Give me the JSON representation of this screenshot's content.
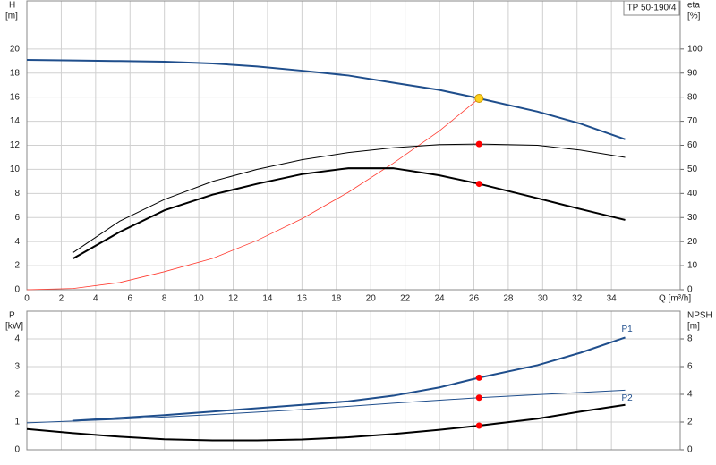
{
  "chart_data": [
    {
      "type": "line",
      "title": "TP 50-190/4",
      "ylabel": "H",
      "yunit": "[m]",
      "y2label": "eta",
      "y2unit": "[%]",
      "xlabel": "Q [m³/h]",
      "xlim": [
        0,
        38
      ],
      "xticks": [
        0,
        2,
        4,
        6,
        8,
        10,
        12,
        14,
        16,
        18,
        20,
        22,
        24,
        26,
        28,
        30,
        32,
        34
      ],
      "show_xtick_labels": true,
      "ylim": [
        0,
        24
      ],
      "yticks": [
        0,
        2,
        4,
        6,
        8,
        10,
        12,
        14,
        16,
        18,
        20
      ],
      "y2lim": [
        0,
        120
      ],
      "y2ticks": [
        0,
        10,
        20,
        30,
        40,
        50,
        60,
        70,
        80,
        90,
        100
      ],
      "grid": true,
      "series": [
        {
          "color": "#1f4e8c",
          "width": 2,
          "axis": "y",
          "x": [
            0,
            2.7,
            5.4,
            8,
            10.8,
            13.4,
            16,
            18.7,
            21.3,
            24,
            26.3,
            29.7,
            32.2,
            34.8
          ],
          "values": [
            19.1,
            19.05,
            19,
            18.95,
            18.8,
            18.55,
            18.2,
            17.8,
            17.2,
            16.6,
            15.9,
            14.8,
            13.8,
            12.5
          ]
        },
        {
          "color": "#ff3b30",
          "width": 0.8,
          "axis": "y",
          "x": [
            0,
            2.7,
            5.4,
            8,
            10.8,
            13.4,
            16,
            18.7,
            21.3,
            24,
            26.3
          ],
          "values": [
            0,
            0.1,
            0.6,
            1.5,
            2.6,
            4.1,
            5.9,
            8.1,
            10.5,
            13.2,
            15.9
          ]
        },
        {
          "color": "#000000",
          "width": 1,
          "axis": "y2",
          "x": [
            2.7,
            5.4,
            8,
            10.8,
            13.4,
            16,
            18.7,
            21.3,
            24,
            26.3,
            29.7,
            32.2,
            34.8
          ],
          "values": [
            15.5,
            28.5,
            37.5,
            45,
            50,
            54,
            57,
            59,
            60.3,
            60.5,
            60,
            58,
            55
          ]
        },
        {
          "color": "#000000",
          "width": 2,
          "axis": "y2",
          "x": [
            2.7,
            5.4,
            8,
            10.8,
            13.4,
            16,
            18.7,
            21.3,
            24,
            26.3,
            29.7,
            32.2,
            34.8
          ],
          "values": [
            13,
            24,
            33,
            39.5,
            44,
            48,
            50.5,
            50.5,
            47.5,
            44,
            38,
            33.5,
            29
          ]
        }
      ],
      "markers": [
        {
          "x": 26.3,
          "y": 15.9,
          "axis": "y",
          "color": "#ffd21f"
        },
        {
          "x": 26.3,
          "y": 60.5,
          "axis": "y2",
          "color": "#ff0000"
        },
        {
          "x": 26.3,
          "y": 44,
          "axis": "y2",
          "color": "#ff0000"
        }
      ]
    },
    {
      "type": "line",
      "ylabel": "P",
      "yunit": "[kW]",
      "y2label": "NPSH",
      "y2unit": "[m]",
      "xlim": [
        0,
        38
      ],
      "xticks": [
        0,
        2,
        4,
        6,
        8,
        10,
        12,
        14,
        16,
        18,
        20,
        22,
        24,
        26,
        28,
        30,
        32,
        34
      ],
      "show_xtick_labels": false,
      "ylim": [
        0,
        5
      ],
      "yticks": [
        0,
        1,
        2,
        3,
        4
      ],
      "y2lim": [
        0,
        10
      ],
      "y2ticks": [
        0,
        2,
        4,
        6,
        8
      ],
      "grid": true,
      "series": [
        {
          "name": "P1",
          "color": "#1f4e8c",
          "width": 2,
          "axis": "y",
          "x": [
            2.7,
            5.4,
            8,
            10.8,
            13.4,
            16,
            18.7,
            21.3,
            24,
            26.3,
            29.7,
            32.2,
            34.8
          ],
          "values": [
            1.05,
            1.15,
            1.25,
            1.38,
            1.5,
            1.62,
            1.75,
            1.95,
            2.25,
            2.6,
            3.05,
            3.5,
            4.05
          ]
        },
        {
          "name": "P2",
          "color": "#1f4e8c",
          "width": 1,
          "axis": "y",
          "x": [
            0,
            5.4,
            10.8,
            16,
            21.3,
            26.3,
            34.8
          ],
          "values": [
            0.97,
            1.1,
            1.27,
            1.45,
            1.68,
            1.88,
            2.15
          ]
        },
        {
          "color": "#000000",
          "width": 2,
          "axis": "y2",
          "x": [
            0,
            2.7,
            5.4,
            8,
            10.8,
            13.4,
            16,
            18.7,
            21.3,
            24,
            26.3,
            29.7,
            32.2,
            34.8
          ],
          "values": [
            1.5,
            1.2,
            0.94,
            0.76,
            0.68,
            0.68,
            0.74,
            0.9,
            1.14,
            1.44,
            1.74,
            2.24,
            2.76,
            3.24
          ]
        }
      ],
      "markers": [
        {
          "x": 26.3,
          "y": 2.6,
          "axis": "y",
          "color": "#ff0000"
        },
        {
          "x": 26.3,
          "y": 1.88,
          "axis": "y",
          "color": "#ff0000"
        },
        {
          "x": 26.3,
          "y": 1.74,
          "axis": "y2",
          "color": "#ff0000"
        }
      ]
    }
  ]
}
